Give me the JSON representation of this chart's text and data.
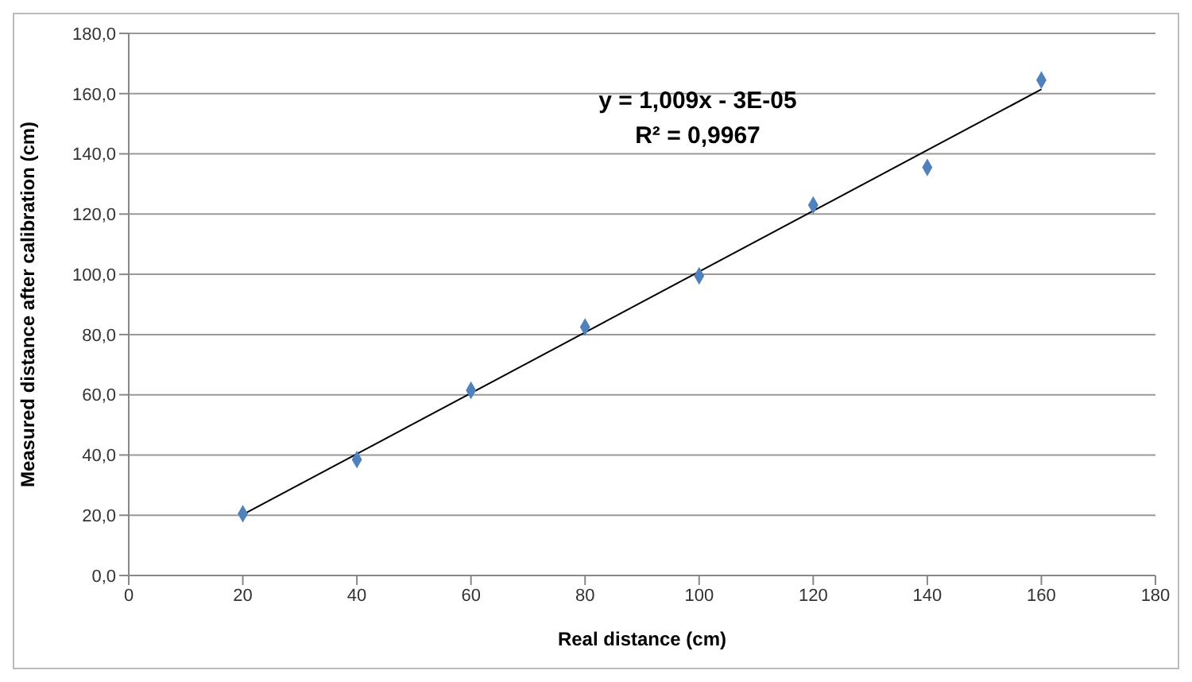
{
  "chart_data": {
    "type": "scatter",
    "xlabel": "Real distance (cm)",
    "ylabel": "Measured distance after calibration (cm)",
    "annotations": [
      "y = 1,009x - 3E-05",
      "R² = 0,9967"
    ],
    "series": [
      {
        "color": "#4f81bd",
        "marker": "diamond",
        "x": [
          20,
          40,
          60,
          80,
          100,
          120,
          140,
          160
        ],
        "values": [
          20.5,
          38.5,
          61.5,
          82.5,
          99.5,
          123,
          135.5,
          164.5
        ]
      },
      {
        "type": "line",
        "color": "#000000",
        "marker": "none",
        "x": [
          20,
          160
        ],
        "values": [
          20.2,
          161.4
        ]
      }
    ],
    "xlim": [
      0,
      180
    ],
    "xticks": [
      0,
      20,
      40,
      60,
      80,
      100,
      120,
      140,
      160,
      180
    ],
    "ylim": [
      0,
      180
    ],
    "yticks": [
      {
        "value": 0,
        "label": "0,0"
      },
      {
        "value": 20,
        "label": "20,0"
      },
      {
        "value": 40,
        "label": "40,0"
      },
      {
        "value": 60,
        "label": "60,0"
      },
      {
        "value": 80,
        "label": "80,0"
      },
      {
        "value": 100,
        "label": "100,0"
      },
      {
        "value": 120,
        "label": "120,0"
      },
      {
        "value": 140,
        "label": "140,0"
      },
      {
        "value": 160,
        "label": "160,0"
      },
      {
        "value": 180,
        "label": "180,0"
      }
    ],
    "grid": "y"
  }
}
